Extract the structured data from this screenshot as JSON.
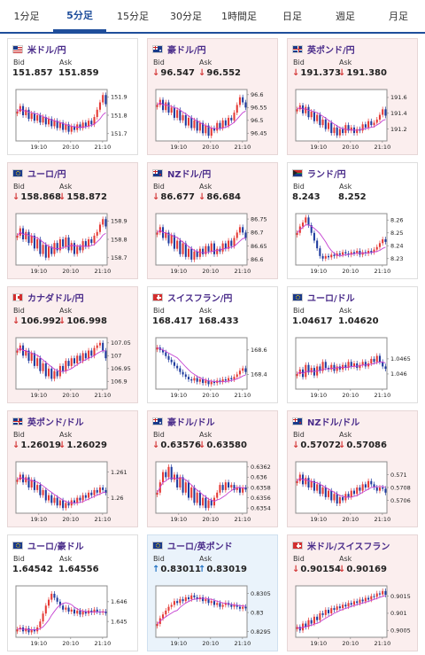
{
  "tabs": [
    {
      "label": "1分足",
      "active": false
    },
    {
      "label": "5分足",
      "active": true
    },
    {
      "label": "15分足",
      "active": false
    },
    {
      "label": "30分足",
      "active": false
    },
    {
      "label": "1時間足",
      "active": false
    },
    {
      "label": "日足",
      "active": false
    },
    {
      "label": "週足",
      "active": false
    },
    {
      "label": "月足",
      "active": false
    }
  ],
  "labels": {
    "bid": "Bid",
    "ask": "Ask"
  },
  "colors": {
    "down_bg": "#fbeeee",
    "up_bg": "#eaf3fb",
    "title": "#4a2c8a",
    "bull": "#e53935",
    "bear": "#1e3a9e",
    "ma": "#c43fd1"
  },
  "cards": [
    {
      "name": "米ドル/円",
      "flag": "us-flag",
      "dir": "neutral",
      "bid": "151.857",
      "ask": "151.859",
      "chart_data": {
        "type": "candlestick",
        "x_ticks": [
          "19:10",
          "20:10",
          "21:10"
        ],
        "y_ticks": [
          "151.9",
          "151.8",
          "151.7"
        ],
        "ylim": [
          151.66,
          151.94
        ],
        "close": [
          151.82,
          151.85,
          151.8,
          151.83,
          151.78,
          151.81,
          151.77,
          151.8,
          151.76,
          151.79,
          151.75,
          151.78,
          151.74,
          151.77,
          151.73,
          151.76,
          151.72,
          151.75,
          151.71,
          151.74,
          151.72,
          151.75,
          151.73,
          151.76,
          151.74,
          151.77,
          151.75,
          151.79,
          151.83,
          151.87,
          151.91,
          151.86
        ]
      }
    },
    {
      "name": "豪ドル/円",
      "flag": "au-flag",
      "dir": "down",
      "bid": "96.547",
      "ask": "96.552",
      "chart_data": {
        "type": "candlestick",
        "x_ticks": [
          "19:10",
          "20:10",
          "21:10"
        ],
        "y_ticks": [
          "96.6",
          "96.55",
          "96.5",
          "96.45"
        ],
        "ylim": [
          96.42,
          96.62
        ],
        "close": [
          96.56,
          96.58,
          96.54,
          96.57,
          96.53,
          96.55,
          96.51,
          96.54,
          96.5,
          96.52,
          96.48,
          96.51,
          96.47,
          96.5,
          96.46,
          96.49,
          96.45,
          96.48,
          96.44,
          96.47,
          96.46,
          96.49,
          96.47,
          96.5,
          96.48,
          96.51,
          96.5,
          96.53,
          96.56,
          96.59,
          96.57,
          96.55
        ]
      }
    },
    {
      "name": "英ポンド/円",
      "flag": "gb-flag",
      "dir": "down",
      "bid": "191.373",
      "ask": "191.380",
      "chart_data": {
        "type": "candlestick",
        "x_ticks": [
          "19:10",
          "20:10",
          "21:10"
        ],
        "y_ticks": [
          "191.6",
          "191.4",
          "191.2"
        ],
        "ylim": [
          191.05,
          191.7
        ],
        "close": [
          191.45,
          191.5,
          191.4,
          191.48,
          191.35,
          191.42,
          191.3,
          191.38,
          191.25,
          191.32,
          191.2,
          191.28,
          191.15,
          191.22,
          191.12,
          191.2,
          191.15,
          191.25,
          191.18,
          191.22,
          191.15,
          191.2,
          191.18,
          191.26,
          191.22,
          191.3,
          191.25,
          191.28,
          191.32,
          191.38,
          191.45,
          191.37
        ]
      }
    },
    {
      "name": "ユーロ/円",
      "flag": "eu-flag",
      "dir": "down",
      "bid": "158.868",
      "ask": "158.872",
      "chart_data": {
        "type": "candlestick",
        "x_ticks": [
          "19:10",
          "20:10",
          "21:10"
        ],
        "y_ticks": [
          "158.9",
          "158.8",
          "158.7"
        ],
        "ylim": [
          158.66,
          158.94
        ],
        "close": [
          158.82,
          158.86,
          158.8,
          158.84,
          158.78,
          158.82,
          158.75,
          158.8,
          158.72,
          158.77,
          158.7,
          158.76,
          158.72,
          158.78,
          158.74,
          158.8,
          158.76,
          158.81,
          158.74,
          158.78,
          158.72,
          158.76,
          158.74,
          158.79,
          158.76,
          158.8,
          158.78,
          158.82,
          158.84,
          158.88,
          158.91,
          158.87
        ]
      }
    },
    {
      "name": "NZドル/円",
      "flag": "nz-flag",
      "dir": "down",
      "bid": "86.677",
      "ask": "86.684",
      "chart_data": {
        "type": "candlestick",
        "x_ticks": [
          "19:10",
          "20:10",
          "21:10"
        ],
        "y_ticks": [
          "86.75",
          "86.7",
          "86.65",
          "86.6"
        ],
        "ylim": [
          86.58,
          86.77
        ],
        "close": [
          86.7,
          86.72,
          86.68,
          86.7,
          86.66,
          86.69,
          86.64,
          86.67,
          86.62,
          86.66,
          86.61,
          86.64,
          86.6,
          86.63,
          86.61,
          86.64,
          86.62,
          86.65,
          86.63,
          86.66,
          86.62,
          86.64,
          86.63,
          86.66,
          86.64,
          86.67,
          86.65,
          86.68,
          86.7,
          86.72,
          86.7,
          86.68
        ]
      }
    },
    {
      "name": "ランド/円",
      "flag": "za-flag",
      "dir": "neutral",
      "bid": "8.243",
      "ask": "8.252",
      "chart_data": {
        "type": "candlestick",
        "x_ticks": [
          "19:10",
          "20:10",
          "21:10"
        ],
        "y_ticks": [
          "8.26",
          "8.25",
          "8.24",
          "8.23"
        ],
        "ylim": [
          8.225,
          8.265
        ],
        "close": [
          8.25,
          8.255,
          8.258,
          8.262,
          8.256,
          8.25,
          8.244,
          8.238,
          8.232,
          8.23,
          8.232,
          8.231,
          8.233,
          8.232,
          8.234,
          8.233,
          8.235,
          8.234,
          8.233,
          8.235,
          8.234,
          8.236,
          8.233,
          8.235,
          8.234,
          8.236,
          8.235,
          8.237,
          8.239,
          8.242,
          8.245,
          8.243
        ]
      }
    },
    {
      "name": "カナダドル/円",
      "flag": "ca-flag",
      "dir": "down",
      "bid": "106.992",
      "ask": "106.998",
      "chart_data": {
        "type": "candlestick",
        "x_ticks": [
          "19:10",
          "20:10",
          "21:10"
        ],
        "y_ticks": [
          "107.05",
          "107",
          "106.95",
          "106.9"
        ],
        "ylim": [
          106.87,
          107.07
        ],
        "close": [
          107.02,
          107.04,
          107.0,
          107.02,
          106.98,
          107.01,
          106.96,
          106.99,
          106.94,
          106.97,
          106.92,
          106.95,
          106.91,
          106.94,
          106.92,
          106.96,
          106.94,
          106.98,
          106.96,
          106.99,
          106.97,
          107.0,
          106.98,
          107.01,
          106.99,
          107.02,
          107.0,
          107.03,
          107.04,
          107.05,
          107.02,
          106.99
        ]
      }
    },
    {
      "name": "スイスフラン/円",
      "flag": "ch-flag",
      "dir": "neutral",
      "bid": "168.417",
      "ask": "168.433",
      "chart_data": {
        "type": "candlestick",
        "x_ticks": [
          "19:10",
          "20:10",
          "21:10"
        ],
        "y_ticks": [
          "168.6",
          "168.4"
        ],
        "ylim": [
          168.28,
          168.7
        ],
        "close": [
          168.62,
          168.6,
          168.58,
          168.55,
          168.52,
          168.5,
          168.47,
          168.45,
          168.42,
          168.4,
          168.38,
          168.36,
          168.35,
          168.37,
          168.34,
          168.36,
          168.33,
          168.35,
          168.32,
          168.34,
          168.33,
          168.35,
          168.34,
          168.36,
          168.35,
          168.37,
          168.36,
          168.38,
          168.4,
          168.43,
          168.45,
          168.42
        ]
      }
    },
    {
      "name": "ユーロ/ドル",
      "flag": "eu-flag",
      "dir": "neutral",
      "bid": "1.04617",
      "ask": "1.04620",
      "chart_data": {
        "type": "candlestick",
        "x_ticks": [
          "19:10",
          "20:10",
          "21:10"
        ],
        "y_ticks": [
          "1.0465",
          "1.046"
        ],
        "ylim": [
          1.0455,
          1.0472
        ],
        "close": [
          1.046,
          1.04615,
          1.0459,
          1.0463,
          1.04605,
          1.0462,
          1.04595,
          1.04625,
          1.0461,
          1.0464,
          1.0462,
          1.04615,
          1.0463,
          1.0461,
          1.04625,
          1.04615,
          1.0463,
          1.0462,
          1.0464,
          1.04625,
          1.04635,
          1.0462,
          1.0463,
          1.0464,
          1.04625,
          1.04635,
          1.0465,
          1.0464,
          1.0466,
          1.0464,
          1.04625,
          1.04617
        ]
      }
    },
    {
      "name": "英ポンド/ドル",
      "flag": "gb-flag",
      "dir": "down",
      "bid": "1.26019",
      "ask": "1.26029",
      "chart_data": {
        "type": "candlestick",
        "x_ticks": [
          "19:10",
          "20:10",
          "21:10"
        ],
        "y_ticks": [
          "1.261",
          "1.26"
        ],
        "ylim": [
          1.2594,
          1.2614
        ],
        "close": [
          1.2607,
          1.2609,
          1.2606,
          1.2608,
          1.2604,
          1.2607,
          1.2603,
          1.2605,
          1.2601,
          1.2603,
          1.2599,
          1.2601,
          1.2598,
          1.26,
          1.2597,
          1.2599,
          1.2596,
          1.2598,
          1.2597,
          1.2599,
          1.2598,
          1.26,
          1.2599,
          1.2601,
          1.26,
          1.2602,
          1.2601,
          1.2603,
          1.2602,
          1.2604,
          1.2603,
          1.26019
        ]
      }
    },
    {
      "name": "豪ドル/ドル",
      "flag": "au-flag",
      "dir": "down",
      "bid": "0.63576",
      "ask": "0.63580",
      "chart_data": {
        "type": "candlestick",
        "x_ticks": [
          "19:10",
          "20:10",
          "21:10"
        ],
        "y_ticks": [
          "0.6362",
          "0.636",
          "0.6358",
          "0.6356",
          "0.6354"
        ],
        "ylim": [
          0.6353,
          0.6363
        ],
        "close": [
          0.6357,
          0.6359,
          0.6361,
          0.636,
          0.6362,
          0.63595,
          0.63605,
          0.6358,
          0.636,
          0.6357,
          0.6359,
          0.6356,
          0.6358,
          0.6355,
          0.6357,
          0.63545,
          0.6356,
          0.6354,
          0.63555,
          0.63545,
          0.6356,
          0.6357,
          0.63585,
          0.63575,
          0.6359,
          0.6358,
          0.63585,
          0.63575,
          0.6358,
          0.6357,
          0.6358,
          0.63576
        ]
      }
    },
    {
      "name": "NZドル/ドル",
      "flag": "nz-flag",
      "dir": "down",
      "bid": "0.57072",
      "ask": "0.57086",
      "chart_data": {
        "type": "candlestick",
        "x_ticks": [
          "19:10",
          "20:10",
          "21:10"
        ],
        "y_ticks": [
          "0.571",
          "0.5708",
          "0.5706"
        ],
        "ylim": [
          0.5704,
          0.5712
        ],
        "close": [
          0.5709,
          0.571,
          0.57085,
          0.57095,
          0.5708,
          0.5709,
          0.57075,
          0.57085,
          0.5707,
          0.5708,
          0.57065,
          0.57075,
          0.5706,
          0.5707,
          0.57055,
          0.57065,
          0.5706,
          0.5707,
          0.57065,
          0.57075,
          0.5707,
          0.5708,
          0.57075,
          0.57085,
          0.5708,
          0.5709,
          0.57085,
          0.5708,
          0.57075,
          0.5708,
          0.57078,
          0.57072
        ]
      }
    },
    {
      "name": "ユーロ/豪ドル",
      "flag": "eu-flag",
      "dir": "neutral",
      "bid": "1.64542",
      "ask": "1.64556",
      "chart_data": {
        "type": "candlestick",
        "x_ticks": [
          "19:10",
          "20:10",
          "21:10"
        ],
        "y_ticks": [
          "1.646",
          "1.645"
        ],
        "ylim": [
          1.6442,
          1.6468
        ],
        "close": [
          1.6446,
          1.6447,
          1.6445,
          1.64465,
          1.64445,
          1.6446,
          1.6445,
          1.6447,
          1.645,
          1.6454,
          1.6458,
          1.6461,
          1.6464,
          1.6462,
          1.646,
          1.6458,
          1.6456,
          1.6457,
          1.6455,
          1.6456,
          1.6454,
          1.64555,
          1.64535,
          1.6455,
          1.6454,
          1.64555,
          1.64545,
          1.6456,
          1.6455,
          1.64545,
          1.6455,
          1.64542
        ]
      }
    },
    {
      "name": "ユーロ/英ポンド",
      "flag": "eu-flag",
      "dir": "up",
      "bid": "0.83011",
      "ask": "0.83019",
      "chart_data": {
        "type": "candlestick",
        "x_ticks": [
          "19:10",
          "20:10",
          "21:10"
        ],
        "y_ticks": [
          "0.8305",
          "0.83",
          "0.8295"
        ],
        "ylim": [
          0.82935,
          0.8307
        ],
        "close": [
          0.8297,
          0.82985,
          0.82995,
          0.83005,
          0.83015,
          0.8302,
          0.8303,
          0.83025,
          0.83035,
          0.8303,
          0.8304,
          0.83035,
          0.83045,
          0.8304,
          0.83035,
          0.8304,
          0.8303,
          0.83035,
          0.83025,
          0.8303,
          0.8302,
          0.83025,
          0.83015,
          0.8302,
          0.83025,
          0.8302,
          0.83015,
          0.8302,
          0.83015,
          0.8301,
          0.83015,
          0.83011
        ]
      }
    },
    {
      "name": "米ドル/スイスフラン",
      "flag": "ch-flag",
      "dir": "down",
      "bid": "0.90154",
      "ask": "0.90169",
      "chart_data": {
        "type": "candlestick",
        "x_ticks": [
          "19:10",
          "20:10",
          "21:10"
        ],
        "y_ticks": [
          "0.9015",
          "0.901",
          "0.9005"
        ],
        "ylim": [
          0.9003,
          0.9018
        ],
        "close": [
          0.9006,
          0.9005,
          0.9007,
          0.9006,
          0.9008,
          0.9007,
          0.9009,
          0.9008,
          0.901,
          0.90095,
          0.9011,
          0.901,
          0.90115,
          0.9011,
          0.9012,
          0.90115,
          0.90125,
          0.9012,
          0.9013,
          0.90125,
          0.90135,
          0.9013,
          0.9014,
          0.90135,
          0.90145,
          0.9014,
          0.9015,
          0.90148,
          0.90158,
          0.90155,
          0.90165,
          0.90154
        ]
      }
    }
  ]
}
